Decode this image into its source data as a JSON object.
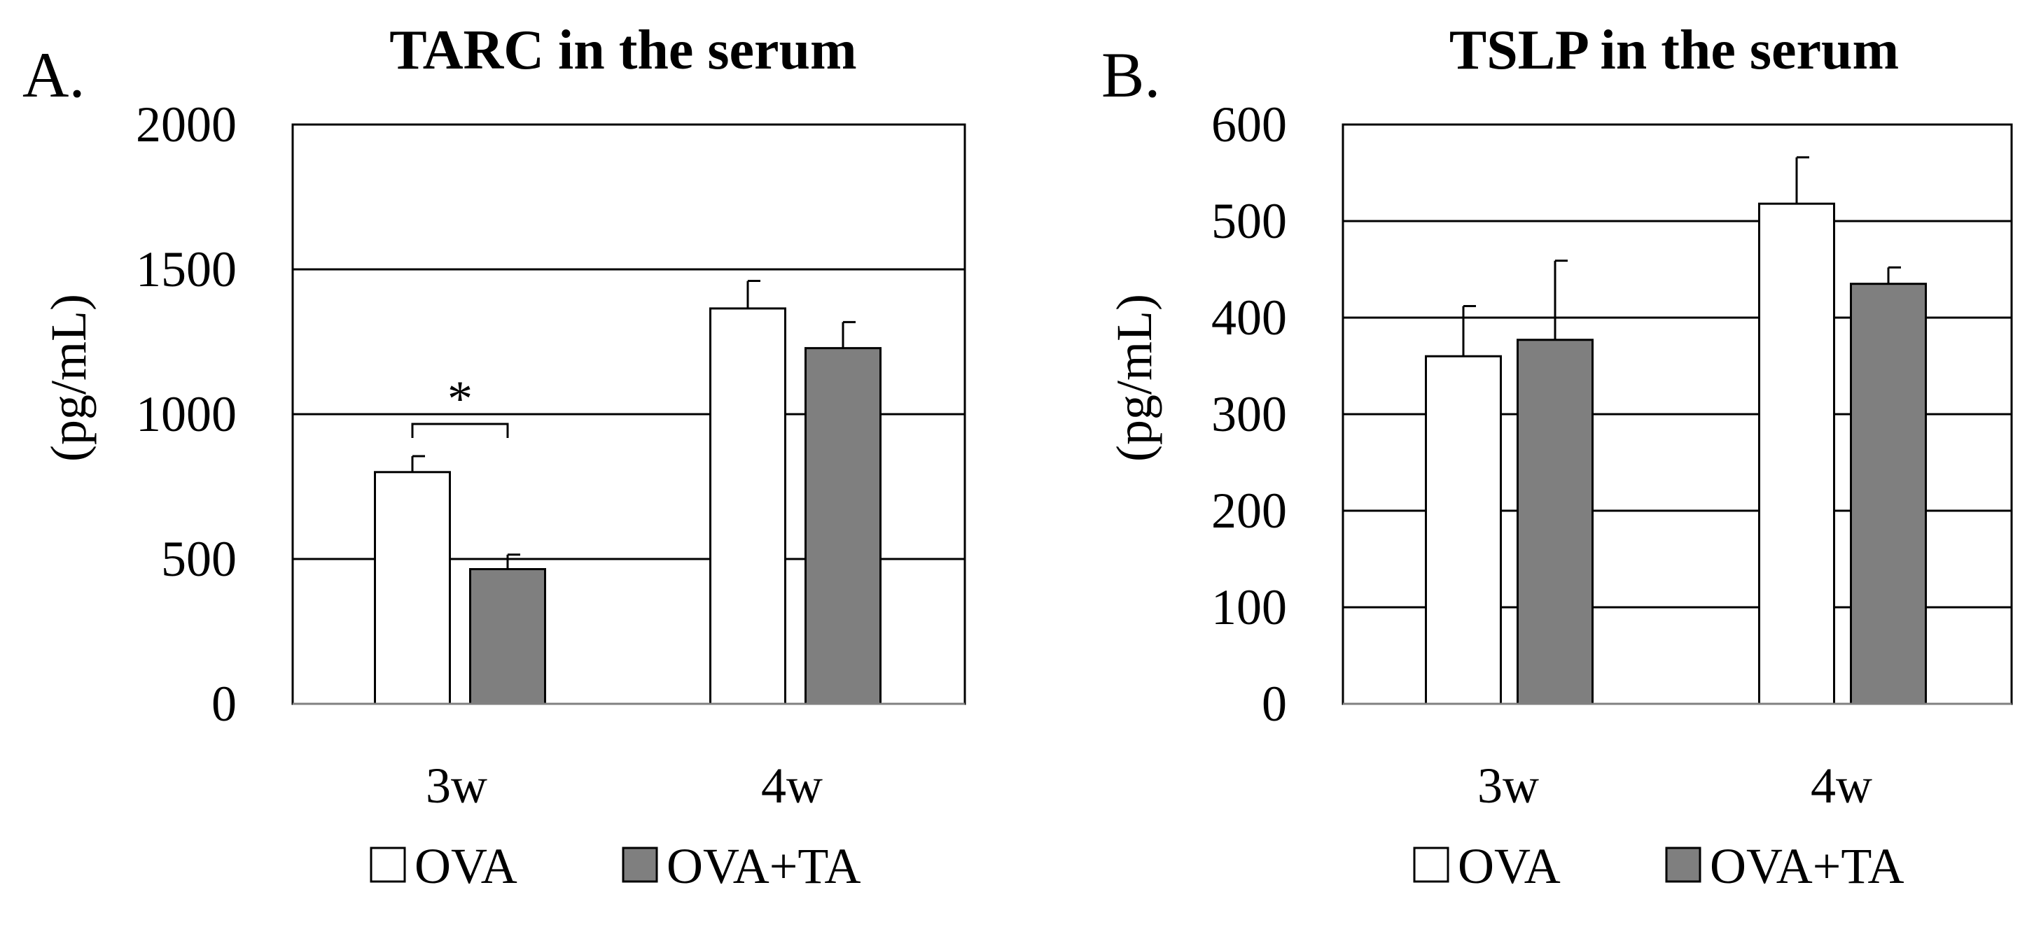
{
  "chart_data": [
    {
      "panel_label": "A.",
      "type": "bar",
      "title": "TARC in the serum",
      "ylabel": "(pg/mL)",
      "xlabel": "",
      "ylim": [
        0,
        2000
      ],
      "yticks": [
        0,
        500,
        1000,
        1500,
        2000
      ],
      "ytick_labels": [
        "0",
        "500",
        "1000",
        "1500",
        "2000"
      ],
      "grid": true,
      "categories": [
        "3w",
        "4w"
      ],
      "series": [
        {
          "name": "OVA",
          "color": "#ffffff",
          "values": [
            800,
            1365
          ],
          "errors": [
            55,
            95
          ]
        },
        {
          "name": "OVA+TA",
          "color": "#7f7f7f",
          "values": [
            465,
            1228
          ],
          "errors": [
            50,
            90
          ]
        }
      ],
      "annotations": [
        {
          "text": "*",
          "category_index": 0,
          "type": "significance-bracket"
        }
      ],
      "legend": {
        "position": "bottom",
        "entries": [
          "OVA",
          "OVA+TA"
        ]
      }
    },
    {
      "panel_label": "B.",
      "type": "bar",
      "title": "TSLP in the serum",
      "ylabel": "(pg/mL)",
      "xlabel": "",
      "ylim": [
        0,
        600
      ],
      "yticks": [
        0,
        100,
        200,
        300,
        400,
        500,
        600
      ],
      "ytick_labels": [
        "0",
        "100",
        "200",
        "300",
        "400",
        "500",
        "600"
      ],
      "grid": true,
      "categories": [
        "3w",
        "4w"
      ],
      "series": [
        {
          "name": "OVA",
          "color": "#ffffff",
          "values": [
            360,
            518
          ],
          "errors": [
            52,
            48
          ]
        },
        {
          "name": "OVA+TA",
          "color": "#7f7f7f",
          "values": [
            377,
            435
          ],
          "errors": [
            82,
            17
          ]
        }
      ],
      "annotations": [],
      "legend": {
        "position": "bottom",
        "entries": [
          "OVA",
          "OVA+TA"
        ]
      }
    }
  ]
}
